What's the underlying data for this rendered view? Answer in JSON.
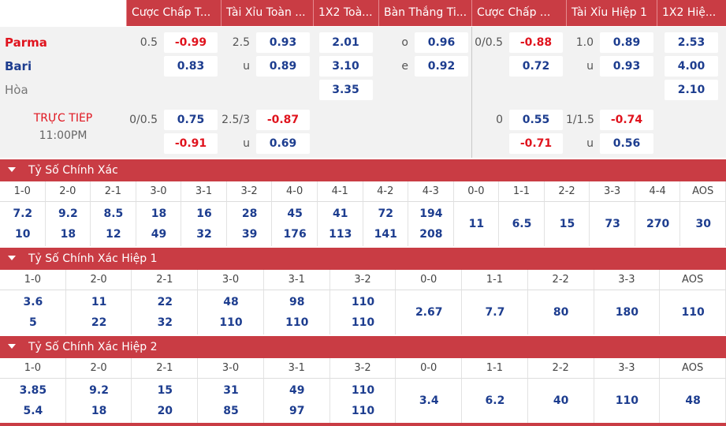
{
  "header": {
    "columns": [
      "Cược Chấp T...",
      "Tài Xỉu Toàn ...",
      "1X2 Toà...",
      "Bàn Thắng Ti...",
      "Cược Chấp ...",
      "Tài Xỉu Hiệp 1",
      "1X2 Hiệ..."
    ]
  },
  "match": {
    "rows": [
      {
        "team": "Parma",
        "cells": [
          {
            "line": "0.5",
            "odds": "-0.99"
          },
          {
            "line": "2.5",
            "odds": "0.93"
          },
          {
            "odds": "2.01"
          },
          {
            "line": "o",
            "odds": "0.96"
          },
          {
            "line": "0/0.5",
            "odds": "-0.88"
          },
          {
            "line": "1.0",
            "odds": "0.89"
          },
          {
            "odds": "2.53"
          }
        ]
      },
      {
        "team": "Bari",
        "cells": [
          {
            "odds": "0.83"
          },
          {
            "line": "u",
            "odds": "0.89"
          },
          {
            "odds": "3.10"
          },
          {
            "line": "e",
            "odds": "0.92"
          },
          {
            "odds": "0.72"
          },
          {
            "line": "u",
            "odds": "0.93"
          },
          {
            "odds": "4.00"
          }
        ]
      },
      {
        "team": "Hòa",
        "cells": [
          null,
          null,
          {
            "odds": "3.35"
          },
          null,
          null,
          null,
          {
            "odds": "2.10"
          }
        ]
      }
    ]
  },
  "live": {
    "label": "TRỰC TIẾP",
    "time": "11:00PM",
    "rows": [
      {
        "cells": [
          {
            "line": "0/0.5",
            "odds": "0.75"
          },
          {
            "line": "2.5/3",
            "odds": "-0.87"
          },
          null,
          null,
          {
            "line": "0",
            "odds": "0.55"
          },
          {
            "line": "1/1.5",
            "odds": "-0.74"
          },
          null
        ]
      },
      {
        "cells": [
          {
            "odds": "-0.91"
          },
          {
            "line": "u",
            "odds": "0.69"
          },
          null,
          null,
          {
            "odds": "-0.71"
          },
          {
            "line": "u",
            "odds": "0.56"
          },
          null
        ]
      }
    ]
  },
  "sections": [
    {
      "title": "Tỷ Số Chính Xác",
      "scores": [
        "1-0",
        "2-0",
        "2-1",
        "3-0",
        "3-1",
        "3-2",
        "4-0",
        "4-1",
        "4-2",
        "4-3",
        "0-0",
        "1-1",
        "2-2",
        "3-3",
        "4-4",
        "AOS"
      ],
      "odds": [
        [
          "7.2",
          "10"
        ],
        [
          "9.2",
          "18"
        ],
        [
          "8.5",
          "12"
        ],
        [
          "18",
          "49"
        ],
        [
          "16",
          "32"
        ],
        [
          "28",
          "39"
        ],
        [
          "45",
          "176"
        ],
        [
          "41",
          "113"
        ],
        [
          "72",
          "141"
        ],
        [
          "194",
          "208"
        ],
        [
          "11"
        ],
        [
          "6.5"
        ],
        [
          "15"
        ],
        [
          "73"
        ],
        [
          "270"
        ],
        [
          "30"
        ]
      ]
    },
    {
      "title": "Tỷ Số Chính Xác Hiệp 1",
      "scores": [
        "1-0",
        "2-0",
        "2-1",
        "3-0",
        "3-1",
        "3-2",
        "0-0",
        "1-1",
        "2-2",
        "3-3",
        "AOS"
      ],
      "odds": [
        [
          "3.6",
          "5"
        ],
        [
          "11",
          "22"
        ],
        [
          "22",
          "32"
        ],
        [
          "48",
          "110"
        ],
        [
          "98",
          "110"
        ],
        [
          "110",
          "110"
        ],
        [
          "2.67"
        ],
        [
          "7.7"
        ],
        [
          "80"
        ],
        [
          "180"
        ],
        [
          "110"
        ]
      ]
    },
    {
      "title": "Tỷ Số Chính Xác Hiệp 2",
      "scores": [
        "1-0",
        "2-0",
        "2-1",
        "3-0",
        "3-1",
        "3-2",
        "0-0",
        "1-1",
        "2-2",
        "3-3",
        "AOS"
      ],
      "odds": [
        [
          "3.85",
          "5.4"
        ],
        [
          "9.2",
          "18"
        ],
        [
          "15",
          "20"
        ],
        [
          "31",
          "85"
        ],
        [
          "49",
          "97"
        ],
        [
          "110",
          "110"
        ],
        [
          "3.4"
        ],
        [
          "6.2"
        ],
        [
          "40"
        ],
        [
          "110"
        ],
        [
          "48"
        ]
      ]
    }
  ]
}
